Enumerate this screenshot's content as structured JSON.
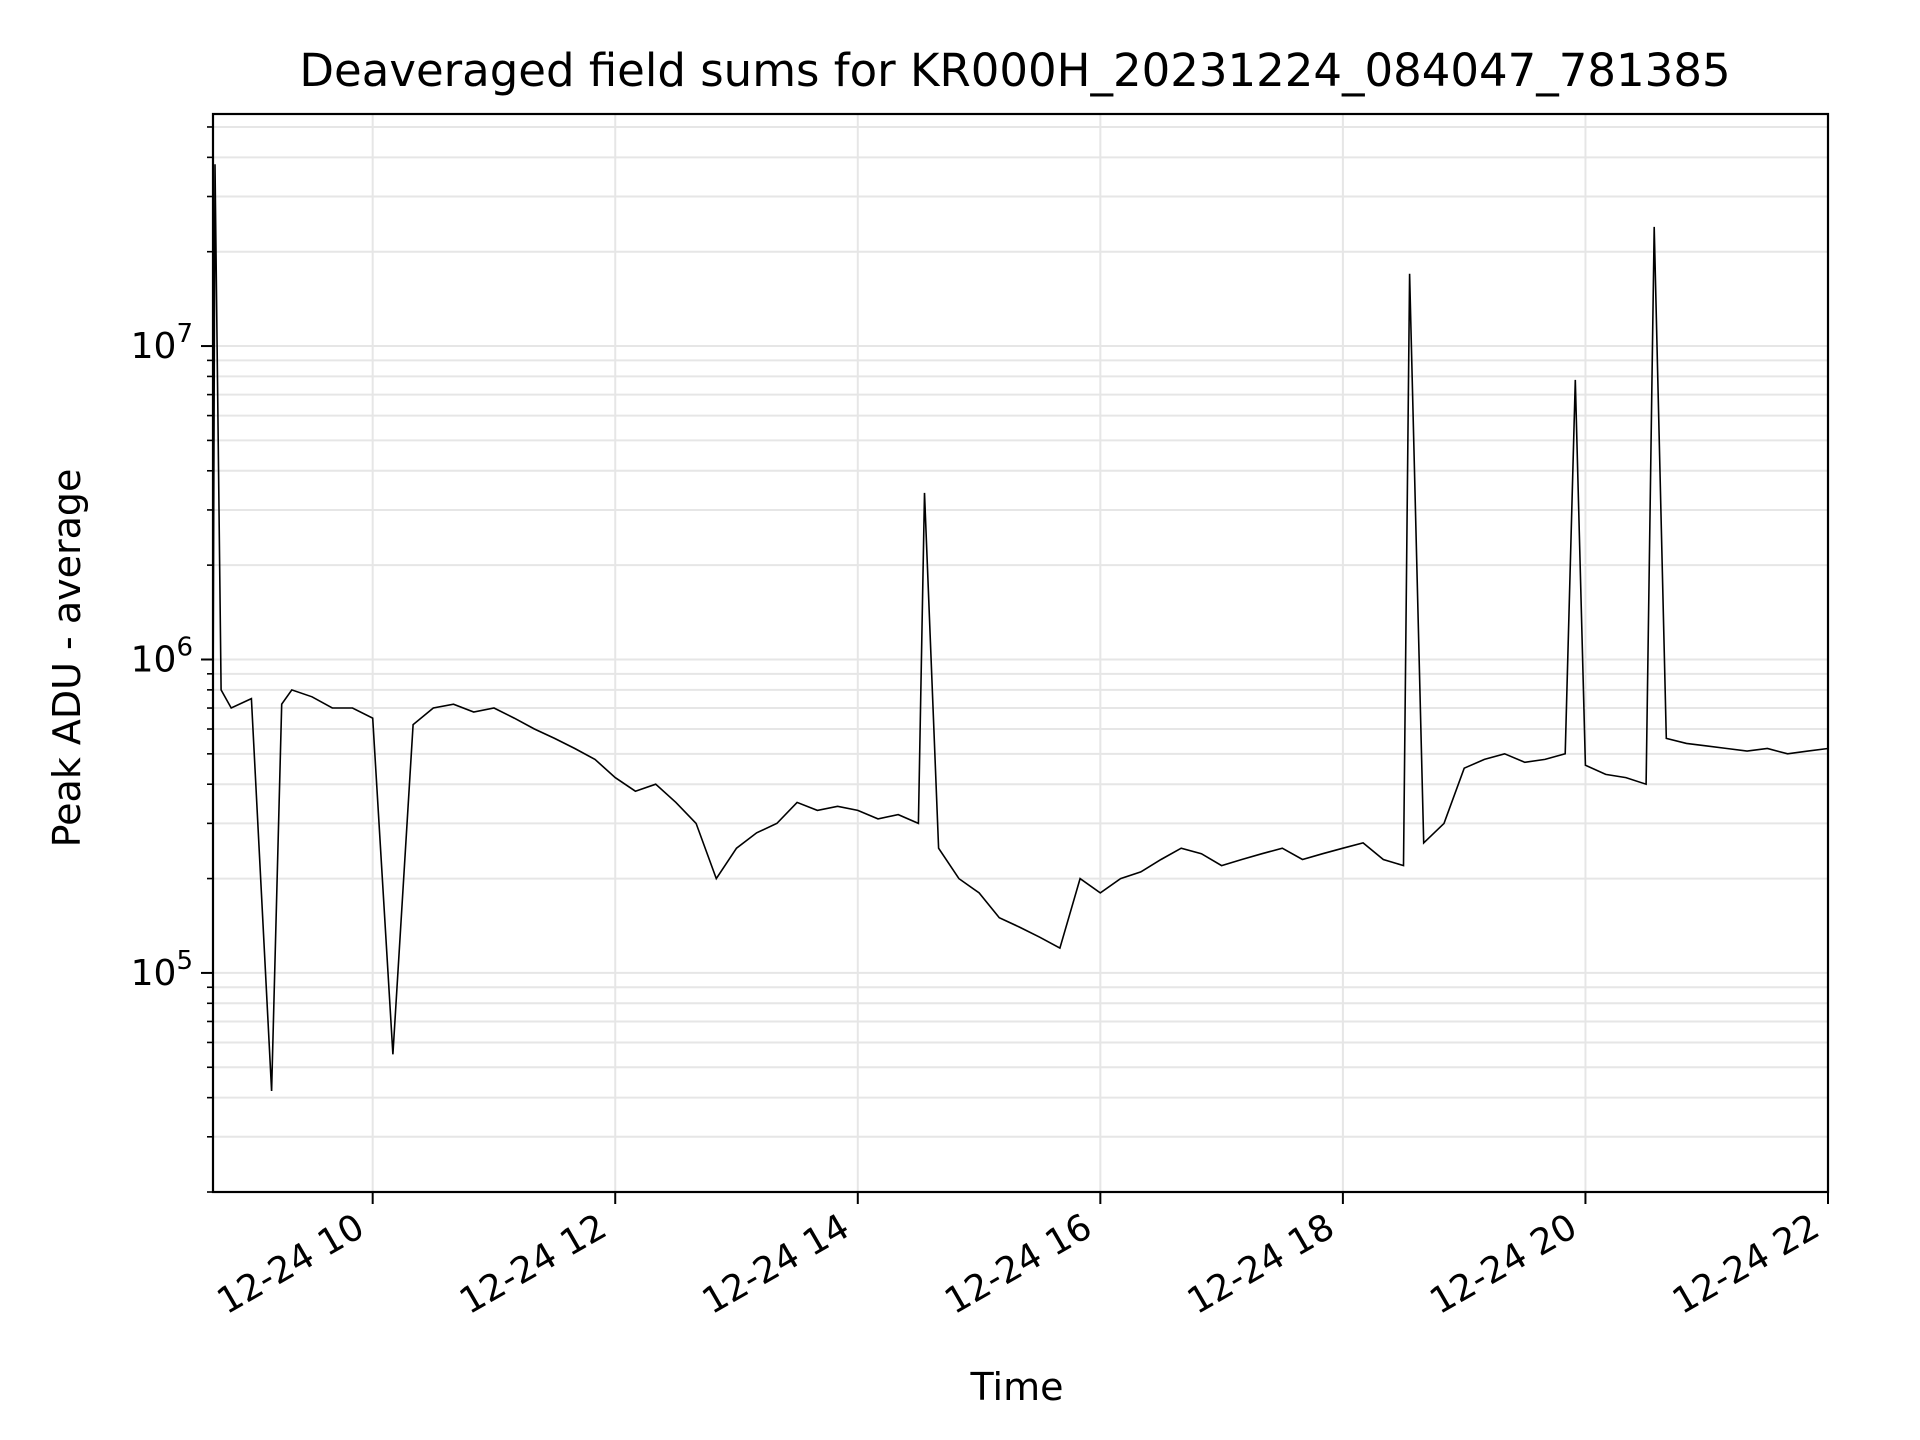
{
  "chart_data": {
    "type": "line",
    "title": "Deaveraged field sums for KR000H_20231224_084047_781385",
    "xlabel": "Time",
    "ylabel": "Peak ADU - average",
    "yscale": "log",
    "ylim": [
      20000,
      55000000
    ],
    "xlim": [
      "2023-12-24 08:41",
      "2023-12-24 22:00"
    ],
    "grid": true,
    "line_color": "#000000",
    "grid_color": "#e6e6e6",
    "x_ticks": [
      {
        "value": "2023-12-24 10:00",
        "label": "12-24 10"
      },
      {
        "value": "2023-12-24 12:00",
        "label": "12-24 12"
      },
      {
        "value": "2023-12-24 14:00",
        "label": "12-24 14"
      },
      {
        "value": "2023-12-24 16:00",
        "label": "12-24 16"
      },
      {
        "value": "2023-12-24 18:00",
        "label": "12-24 18"
      },
      {
        "value": "2023-12-24 20:00",
        "label": "12-24 20"
      },
      {
        "value": "2023-12-24 22:00",
        "label": "12-24 22"
      }
    ],
    "y_ticks": [
      {
        "value": 100000,
        "base": "10",
        "exp": "5"
      },
      {
        "value": 1000000,
        "base": "10",
        "exp": "6"
      },
      {
        "value": 10000000,
        "base": "10",
        "exp": "7"
      }
    ],
    "series": [
      {
        "x": [
          "2023-12-24 08:41",
          "2023-12-24 08:42",
          "2023-12-24 08:45",
          "2023-12-24 08:50",
          "2023-12-24 09:00",
          "2023-12-24 09:10",
          "2023-12-24 09:15",
          "2023-12-24 09:20",
          "2023-12-24 09:30",
          "2023-12-24 09:40",
          "2023-12-24 09:50",
          "2023-12-24 10:00",
          "2023-12-24 10:10",
          "2023-12-24 10:20",
          "2023-12-24 10:30",
          "2023-12-24 10:40",
          "2023-12-24 10:50",
          "2023-12-24 11:00",
          "2023-12-24 11:10",
          "2023-12-24 11:20",
          "2023-12-24 11:30",
          "2023-12-24 11:40",
          "2023-12-24 11:50",
          "2023-12-24 12:00",
          "2023-12-24 12:10",
          "2023-12-24 12:20",
          "2023-12-24 12:30",
          "2023-12-24 12:40",
          "2023-12-24 12:50",
          "2023-12-24 13:00",
          "2023-12-24 13:10",
          "2023-12-24 13:20",
          "2023-12-24 13:30",
          "2023-12-24 13:40",
          "2023-12-24 13:50",
          "2023-12-24 14:00",
          "2023-12-24 14:10",
          "2023-12-24 14:20",
          "2023-12-24 14:30",
          "2023-12-24 14:33",
          "2023-12-24 14:40",
          "2023-12-24 14:50",
          "2023-12-24 15:00",
          "2023-12-24 15:10",
          "2023-12-24 15:20",
          "2023-12-24 15:30",
          "2023-12-24 15:40",
          "2023-12-24 15:50",
          "2023-12-24 16:00",
          "2023-12-24 16:10",
          "2023-12-24 16:20",
          "2023-12-24 16:30",
          "2023-12-24 16:40",
          "2023-12-24 16:50",
          "2023-12-24 17:00",
          "2023-12-24 17:10",
          "2023-12-24 17:20",
          "2023-12-24 17:30",
          "2023-12-24 17:40",
          "2023-12-24 17:50",
          "2023-12-24 18:00",
          "2023-12-24 18:10",
          "2023-12-24 18:20",
          "2023-12-24 18:30",
          "2023-12-24 18:33",
          "2023-12-24 18:40",
          "2023-12-24 18:50",
          "2023-12-24 19:00",
          "2023-12-24 19:10",
          "2023-12-24 19:20",
          "2023-12-24 19:30",
          "2023-12-24 19:40",
          "2023-12-24 19:50",
          "2023-12-24 19:55",
          "2023-12-24 20:00",
          "2023-12-24 20:10",
          "2023-12-24 20:20",
          "2023-12-24 20:30",
          "2023-12-24 20:34",
          "2023-12-24 20:40",
          "2023-12-24 20:50",
          "2023-12-24 21:00",
          "2023-12-24 21:10",
          "2023-12-24 21:20",
          "2023-12-24 21:30",
          "2023-12-24 21:40",
          "2023-12-24 21:50",
          "2023-12-24 22:00"
        ],
        "values": [
          700000,
          38000000,
          800000,
          700000,
          750000,
          42000,
          720000,
          800000,
          760000,
          700000,
          700000,
          650000,
          55000,
          620000,
          700000,
          720000,
          680000,
          700000,
          650000,
          600000,
          560000,
          520000,
          480000,
          420000,
          380000,
          400000,
          350000,
          300000,
          200000,
          250000,
          280000,
          300000,
          350000,
          330000,
          340000,
          330000,
          310000,
          320000,
          300000,
          3400000,
          250000,
          200000,
          180000,
          150000,
          140000,
          130000,
          120000,
          200000,
          180000,
          200000,
          210000,
          230000,
          250000,
          240000,
          220000,
          230000,
          240000,
          250000,
          230000,
          240000,
          250000,
          260000,
          230000,
          220000,
          17000000,
          260000,
          300000,
          450000,
          480000,
          500000,
          470000,
          480000,
          500000,
          7800000,
          460000,
          430000,
          420000,
          400000,
          24000000,
          560000,
          540000,
          530000,
          520000,
          510000,
          520000,
          500000,
          510000,
          520000
        ]
      }
    ]
  }
}
